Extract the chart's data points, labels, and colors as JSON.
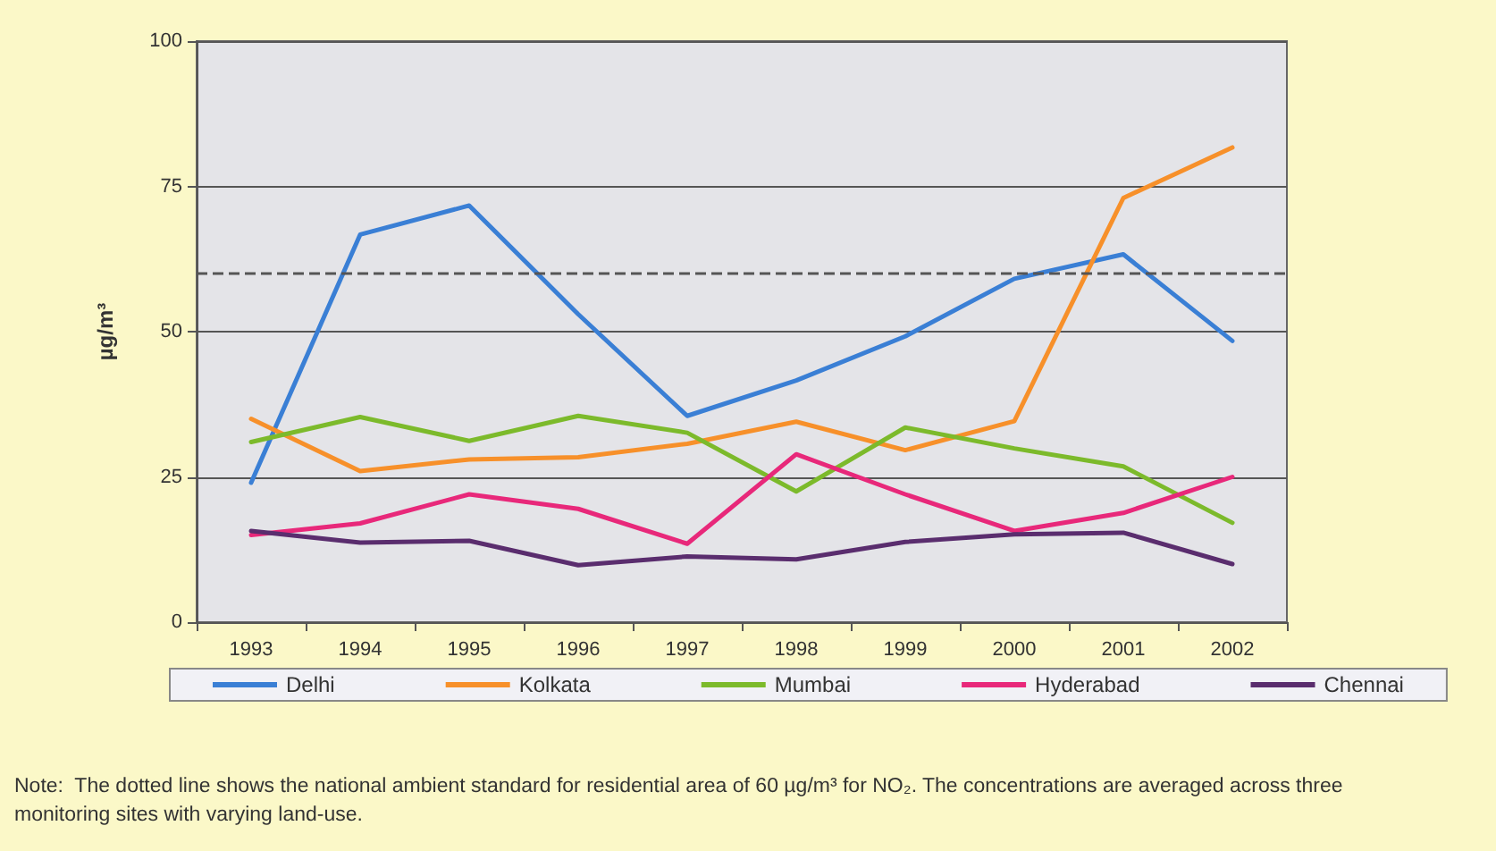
{
  "chart_data": {
    "type": "line",
    "ylabel": "µg/m³",
    "categories": [
      "1993",
      "1994",
      "1995",
      "1996",
      "1997",
      "1998",
      "1999",
      "2000",
      "2001",
      "2002"
    ],
    "series": [
      {
        "name": "Delhi",
        "color": "#3a7fd5",
        "values": [
          24,
          66.7,
          71.7,
          53,
          35.5,
          41.6,
          49.2,
          59.1,
          63.3,
          48.4
        ]
      },
      {
        "name": "Kolkata",
        "color": "#f7902a",
        "values": [
          35,
          26,
          28,
          28.4,
          30.7,
          34.5,
          29.6,
          34.6,
          73,
          81.7
        ]
      },
      {
        "name": "Mumbai",
        "color": "#7cba2b",
        "values": [
          31,
          35.3,
          31.2,
          35.5,
          32.6,
          22.5,
          33.5,
          29.9,
          26.8,
          17.1
        ]
      },
      {
        "name": "Hyderabad",
        "color": "#e8287a",
        "values": [
          15,
          17,
          22,
          19.5,
          13.5,
          28.9,
          22,
          15.7,
          18.8,
          25
        ]
      },
      {
        "name": "Chennai",
        "color": "#5a2d6e",
        "values": [
          15.7,
          13.7,
          14,
          9.8,
          11.3,
          10.8,
          13.8,
          15.1,
          15.4,
          10
        ]
      }
    ],
    "ylim": [
      0,
      100
    ],
    "yticks": [
      0,
      25,
      50,
      75,
      100
    ],
    "grid": "y",
    "legend": "bottom",
    "marker": "none",
    "line_style": "solid",
    "ref_lines": [
      {
        "axis": "y",
        "value": 60,
        "line_style": "dashed",
        "color": "#555555"
      }
    ],
    "annotations": [
      "Note:  The dotted line shows the national ambient standard for residential area of 60 µg/m³ for NO₂. The concentrations are averaged across three monitoring sites with varying land-use."
    ]
  }
}
